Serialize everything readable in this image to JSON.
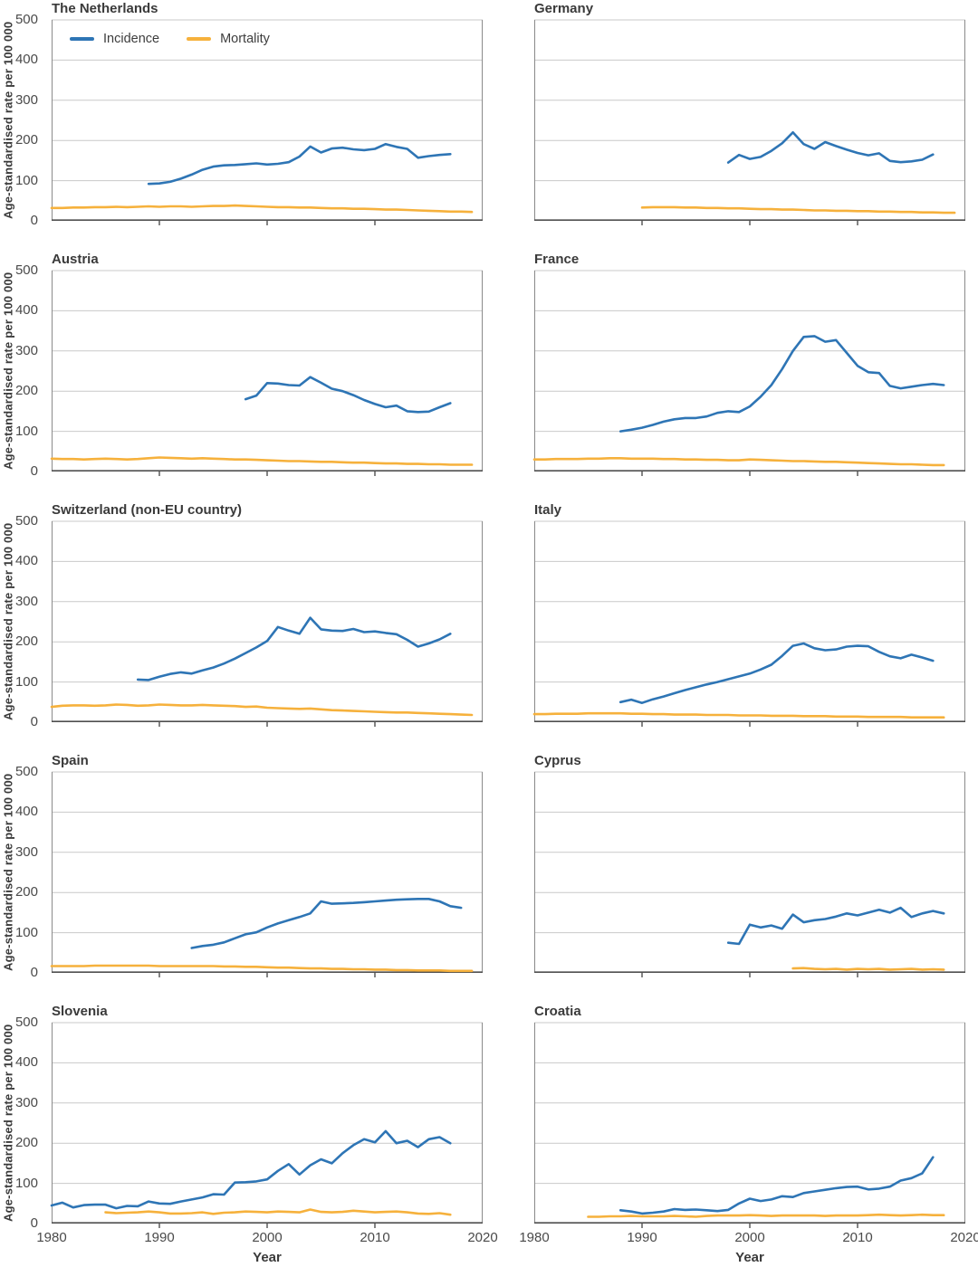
{
  "axis": {
    "y_label": "Age-standardised rate per 100 000",
    "x_label": "Year",
    "y_ticks": [
      500,
      400,
      300,
      200,
      100,
      0
    ],
    "y_gridlines": [
      100,
      200,
      300,
      400,
      500
    ],
    "x_ticks": [
      1980,
      1990,
      2000,
      2010,
      2020
    ],
    "x_minor_ticks": [
      1990,
      2000,
      2010
    ]
  },
  "legend": {
    "incidence": "Incidence",
    "mortality": "Mortality"
  },
  "colors": {
    "incidence": "#2e75b5",
    "mortality": "#f6b13c",
    "grid": "#c9c9c9",
    "border": "#8a8a8a",
    "axis": "#4f4f4f",
    "text": "#3a3a3a"
  },
  "chart_data": [
    {
      "type": "line",
      "title": "The Netherlands",
      "xlabel": "Year",
      "ylabel": "Age-standardised rate per 100 000",
      "x_range": [
        1980,
        2020
      ],
      "y_range": [
        0,
        500
      ],
      "grid": true,
      "legend_position": "top-left-inside",
      "series": [
        {
          "name": "Incidence",
          "start_year": 1989,
          "values": [
            92,
            93,
            97,
            105,
            115,
            127,
            135,
            138,
            139,
            141,
            143,
            140,
            142,
            146,
            160,
            185,
            170,
            180,
            182,
            178,
            176,
            179,
            191,
            184,
            179,
            157,
            161,
            164,
            166
          ]
        },
        {
          "name": "Mortality",
          "start_year": 1980,
          "values": [
            32,
            32,
            33,
            33,
            34,
            34,
            35,
            34,
            35,
            36,
            35,
            36,
            36,
            35,
            36,
            37,
            37,
            38,
            37,
            36,
            35,
            34,
            34,
            33,
            33,
            32,
            31,
            31,
            30,
            30,
            29,
            28,
            28,
            27,
            26,
            25,
            24,
            23,
            23,
            22
          ]
        }
      ]
    },
    {
      "type": "line",
      "title": "Germany",
      "xlabel": "Year",
      "ylabel": "Age-standardised rate per 100 000",
      "x_range": [
        1980,
        2020
      ],
      "y_range": [
        0,
        500
      ],
      "grid": true,
      "series": [
        {
          "name": "Incidence",
          "start_year": 1998,
          "values": [
            145,
            164,
            154,
            159,
            174,
            193,
            220,
            191,
            179,
            196,
            186,
            177,
            169,
            163,
            168,
            149,
            146,
            148,
            152,
            165
          ]
        },
        {
          "name": "Mortality",
          "start_year": 1990,
          "values": [
            33,
            34,
            34,
            34,
            33,
            33,
            32,
            32,
            31,
            31,
            30,
            29,
            29,
            28,
            28,
            27,
            26,
            26,
            25,
            25,
            24,
            24,
            23,
            23,
            22,
            22,
            21,
            21,
            20,
            20
          ]
        }
      ]
    },
    {
      "type": "line",
      "title": "Austria",
      "xlabel": "Year",
      "ylabel": "Age-standardised rate per 100 000",
      "x_range": [
        1980,
        2020
      ],
      "y_range": [
        0,
        500
      ],
      "grid": true,
      "series": [
        {
          "name": "Incidence",
          "start_year": 1998,
          "values": [
            180,
            189,
            220,
            219,
            215,
            214,
            235,
            221,
            206,
            200,
            190,
            178,
            168,
            160,
            164,
            150,
            148,
            149,
            160,
            170
          ]
        },
        {
          "name": "Mortality",
          "start_year": 1980,
          "values": [
            32,
            31,
            31,
            30,
            31,
            32,
            31,
            30,
            31,
            33,
            35,
            34,
            33,
            32,
            33,
            32,
            31,
            30,
            30,
            29,
            28,
            27,
            26,
            26,
            25,
            24,
            24,
            23,
            22,
            22,
            21,
            20,
            20,
            19,
            19,
            18,
            18,
            17,
            17,
            17
          ]
        }
      ]
    },
    {
      "type": "line",
      "title": "France",
      "xlabel": "Year",
      "ylabel": "Age-standardised rate per 100 000",
      "x_range": [
        1980,
        2020
      ],
      "y_range": [
        0,
        500
      ],
      "grid": true,
      "series": [
        {
          "name": "Incidence",
          "start_year": 1988,
          "values": [
            100,
            104,
            109,
            116,
            124,
            130,
            133,
            133,
            137,
            146,
            150,
            148,
            162,
            186,
            215,
            255,
            300,
            335,
            337,
            323,
            327,
            295,
            263,
            247,
            245,
            213,
            207,
            211,
            215,
            218,
            215
          ]
        },
        {
          "name": "Mortality",
          "start_year": 1980,
          "values": [
            30,
            30,
            31,
            31,
            31,
            32,
            32,
            33,
            33,
            32,
            32,
            32,
            31,
            31,
            30,
            30,
            29,
            29,
            28,
            28,
            30,
            29,
            28,
            27,
            26,
            26,
            25,
            24,
            24,
            23,
            22,
            21,
            20,
            19,
            18,
            18,
            17,
            16,
            16
          ]
        }
      ]
    },
    {
      "type": "line",
      "title": "Switzerland (non-EU country)",
      "xlabel": "Year",
      "ylabel": "Age-standardised rate per 100 000",
      "x_range": [
        1980,
        2020
      ],
      "y_range": [
        0,
        500
      ],
      "grid": true,
      "series": [
        {
          "name": "Incidence",
          "start_year": 1988,
          "values": [
            106,
            105,
            113,
            120,
            124,
            121,
            129,
            136,
            146,
            158,
            172,
            186,
            202,
            237,
            228,
            220,
            260,
            231,
            228,
            227,
            232,
            224,
            226,
            222,
            219,
            205,
            188,
            196,
            206,
            220
          ]
        },
        {
          "name": "Mortality",
          "start_year": 1980,
          "values": [
            38,
            41,
            42,
            42,
            41,
            42,
            44,
            43,
            41,
            42,
            44,
            43,
            42,
            42,
            43,
            42,
            41,
            40,
            38,
            39,
            36,
            35,
            34,
            33,
            34,
            32,
            30,
            29,
            28,
            27,
            26,
            25,
            24,
            24,
            23,
            22,
            21,
            20,
            19,
            18
          ]
        }
      ]
    },
    {
      "type": "line",
      "title": "Italy",
      "xlabel": "Year",
      "ylabel": "Age-standardised rate per 100 000",
      "x_range": [
        1980,
        2020
      ],
      "y_range": [
        0,
        500
      ],
      "grid": true,
      "series": [
        {
          "name": "Incidence",
          "start_year": 1988,
          "values": [
            50,
            56,
            48,
            57,
            64,
            72,
            80,
            87,
            94,
            100,
            107,
            114,
            121,
            131,
            143,
            165,
            190,
            196,
            184,
            179,
            181,
            188,
            190,
            189,
            175,
            164,
            159,
            168,
            161,
            153
          ]
        },
        {
          "name": "Mortality",
          "start_year": 1980,
          "values": [
            20,
            20,
            21,
            21,
            21,
            22,
            22,
            22,
            22,
            21,
            21,
            20,
            20,
            19,
            19,
            19,
            18,
            18,
            18,
            17,
            17,
            17,
            16,
            16,
            16,
            15,
            15,
            15,
            14,
            14,
            14,
            13,
            13,
            13,
            13,
            12,
            12,
            12,
            12
          ]
        }
      ]
    },
    {
      "type": "line",
      "title": "Spain",
      "xlabel": "Year",
      "ylabel": "Age-standardised rate per 100 000",
      "x_range": [
        1980,
        2020
      ],
      "y_range": [
        0,
        500
      ],
      "grid": true,
      "series": [
        {
          "name": "Incidence",
          "start_year": 1993,
          "values": [
            62,
            67,
            70,
            76,
            86,
            96,
            101,
            113,
            123,
            131,
            139,
            148,
            178,
            172,
            173,
            174,
            176,
            178,
            180,
            182,
            183,
            184,
            184,
            178,
            166,
            162
          ]
        },
        {
          "name": "Mortality",
          "start_year": 1980,
          "values": [
            17,
            17,
            17,
            17,
            18,
            18,
            18,
            18,
            18,
            18,
            17,
            17,
            17,
            17,
            17,
            17,
            16,
            16,
            15,
            15,
            14,
            13,
            13,
            12,
            11,
            11,
            10,
            10,
            9,
            9,
            8,
            8,
            7,
            7,
            6,
            6,
            6,
            5,
            5,
            5
          ]
        }
      ]
    },
    {
      "type": "line",
      "title": "Cyprus",
      "xlabel": "Year",
      "ylabel": "Age-standardised rate per 100 000",
      "x_range": [
        1980,
        2020
      ],
      "y_range": [
        0,
        500
      ],
      "grid": true,
      "series": [
        {
          "name": "Incidence",
          "start_year": 1998,
          "values": [
            75,
            72,
            120,
            113,
            118,
            110,
            145,
            126,
            131,
            134,
            140,
            148,
            143,
            150,
            157,
            150,
            162,
            139,
            148,
            154,
            148
          ]
        },
        {
          "name": "Mortality",
          "start_year": 2004,
          "values": [
            11,
            12,
            10,
            9,
            10,
            8,
            10,
            9,
            10,
            8,
            9,
            10,
            8,
            9,
            8
          ]
        }
      ]
    },
    {
      "type": "line",
      "title": "Slovenia",
      "xlabel": "Year",
      "ylabel": "Age-standardised rate per 100 000",
      "x_range": [
        1980,
        2020
      ],
      "y_range": [
        0,
        500
      ],
      "grid": true,
      "series": [
        {
          "name": "Incidence",
          "start_year": 1980,
          "values": [
            45,
            52,
            40,
            46,
            47,
            47,
            38,
            44,
            43,
            55,
            50,
            49,
            55,
            60,
            65,
            73,
            72,
            102,
            103,
            105,
            110,
            131,
            148,
            122,
            145,
            160,
            150,
            175,
            195,
            210,
            202,
            230,
            200,
            206,
            190,
            210,
            215,
            200
          ]
        },
        {
          "name": "Mortality",
          "start_year": 1985,
          "values": [
            28,
            26,
            27,
            28,
            30,
            28,
            25,
            25,
            26,
            28,
            24,
            27,
            28,
            30,
            29,
            28,
            30,
            29,
            28,
            35,
            29,
            28,
            29,
            32,
            30,
            28,
            29,
            30,
            28,
            25,
            24,
            26,
            22
          ]
        }
      ]
    },
    {
      "type": "line",
      "title": "Croatia",
      "xlabel": "Year",
      "ylabel": "Age-standardised rate per 100 000",
      "x_range": [
        1980,
        2020
      ],
      "y_range": [
        0,
        500
      ],
      "grid": true,
      "series": [
        {
          "name": "Incidence",
          "start_year": 1988,
          "values": [
            33,
            30,
            25,
            27,
            30,
            36,
            34,
            35,
            33,
            31,
            34,
            50,
            62,
            56,
            60,
            68,
            66,
            76,
            80,
            84,
            88,
            91,
            92,
            85,
            87,
            92,
            107,
            113,
            125,
            165
          ]
        },
        {
          "name": "Mortality",
          "start_year": 1985,
          "values": [
            17,
            17,
            18,
            18,
            19,
            18,
            18,
            18,
            19,
            18,
            17,
            19,
            20,
            20,
            20,
            21,
            20,
            19,
            20,
            20,
            20,
            20,
            19,
            20,
            20,
            20,
            21,
            22,
            21,
            20,
            21,
            22,
            21,
            21
          ]
        }
      ]
    }
  ]
}
